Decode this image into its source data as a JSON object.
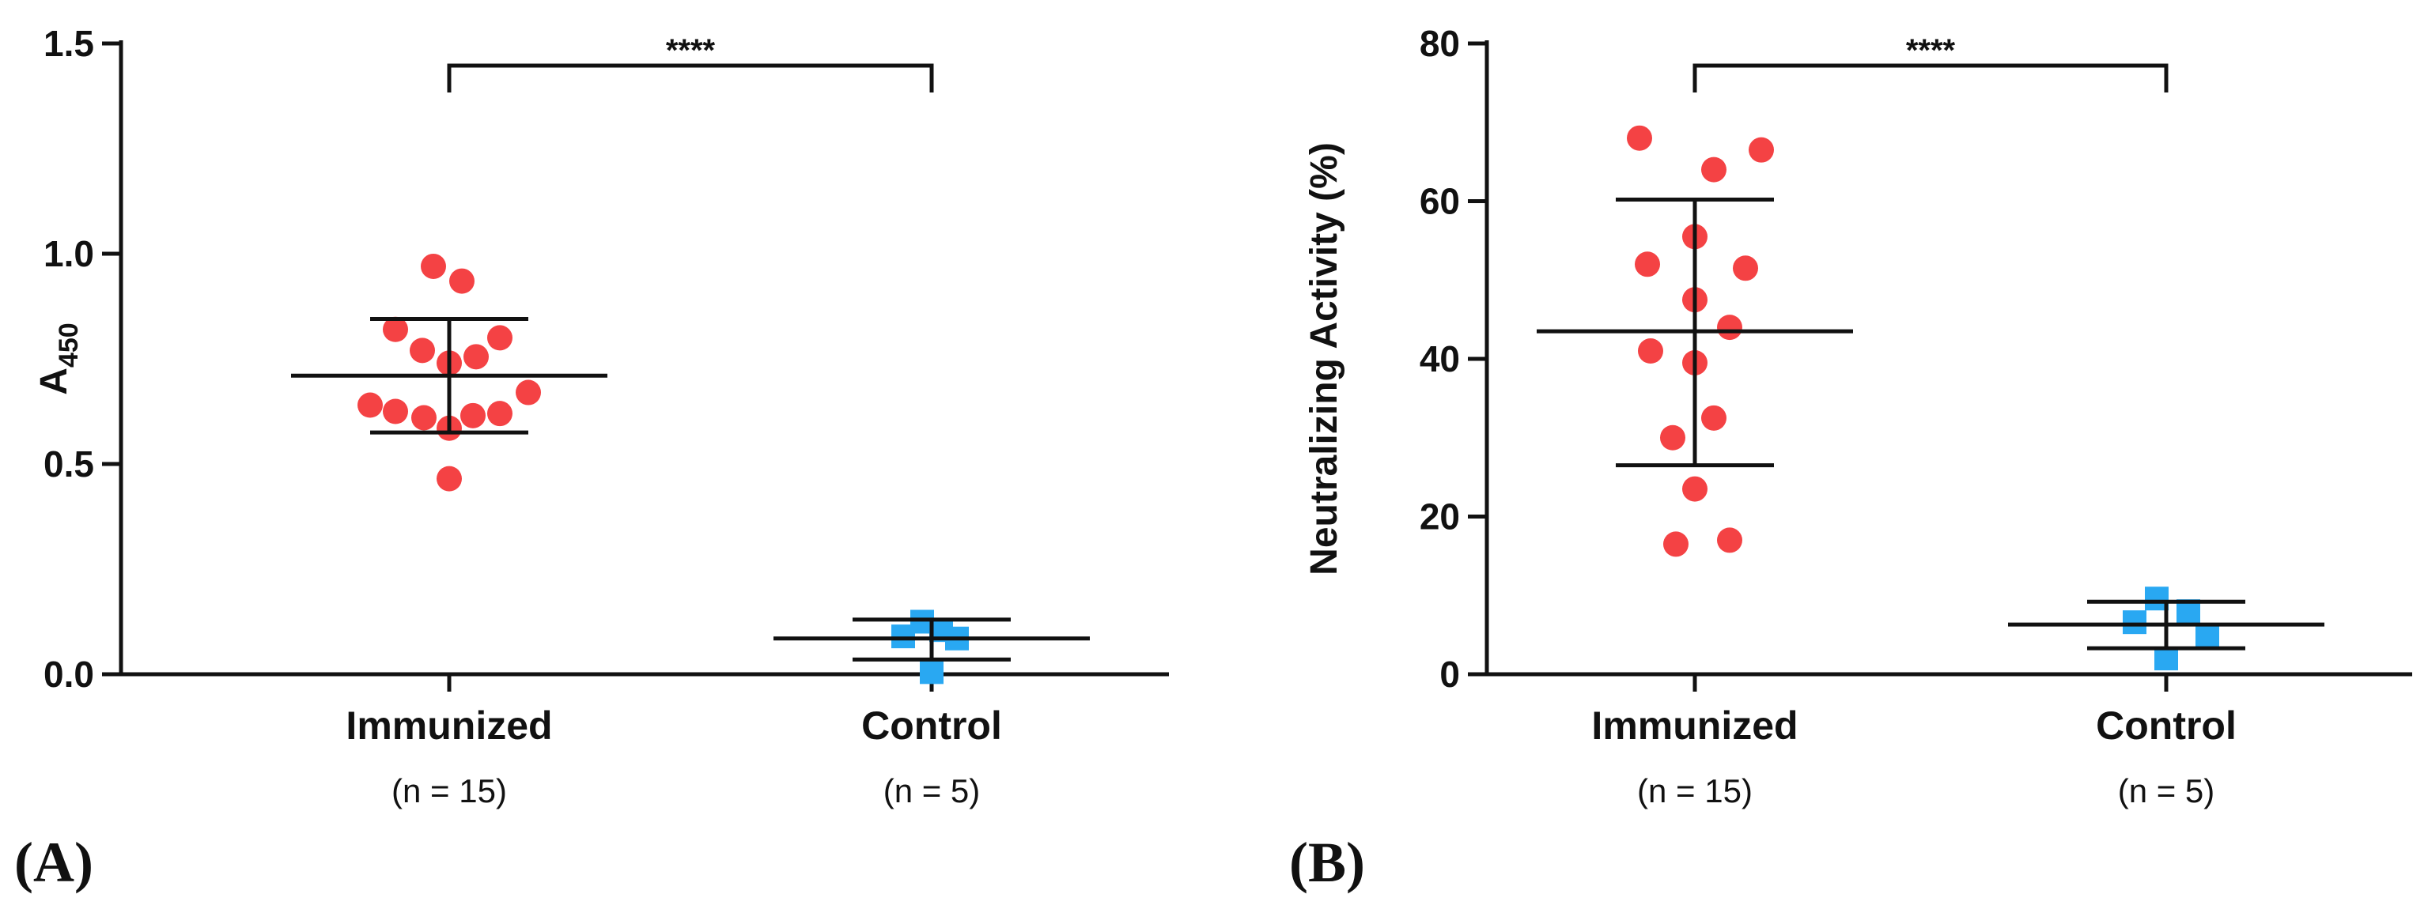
{
  "chart_data": [
    {
      "panel": "(A)",
      "type": "scatter",
      "ylabel_main": "A",
      "ylabel_sub": "450",
      "ylim": [
        0,
        1.5
      ],
      "yticks": [
        0.0,
        0.5,
        1.0,
        1.5
      ],
      "ytick_labels": [
        "0.0",
        "0.5",
        "1.0",
        "1.5"
      ],
      "groups": [
        {
          "name": "Immunized",
          "n_label": "(n = 15)",
          "marker": "circle",
          "color": "#f44244",
          "mean": 0.71,
          "sd_upper": 0.845,
          "sd_lower": 0.575,
          "points": [
            {
              "y": 0.97,
              "jitter": -0.1
            },
            {
              "y": 0.935,
              "jitter": 0.08
            },
            {
              "y": 0.82,
              "jitter": -0.34
            },
            {
              "y": 0.8,
              "jitter": 0.32
            },
            {
              "y": 0.77,
              "jitter": -0.17
            },
            {
              "y": 0.755,
              "jitter": 0.17
            },
            {
              "y": 0.74,
              "jitter": 0.0
            },
            {
              "y": 0.67,
              "jitter": 0.5
            },
            {
              "y": 0.64,
              "jitter": -0.5
            },
            {
              "y": 0.625,
              "jitter": -0.34
            },
            {
              "y": 0.62,
              "jitter": 0.32
            },
            {
              "y": 0.615,
              "jitter": 0.15
            },
            {
              "y": 0.61,
              "jitter": -0.16
            },
            {
              "y": 0.585,
              "jitter": 0.0
            },
            {
              "y": 0.465,
              "jitter": 0.0
            }
          ]
        },
        {
          "name": "Control",
          "n_label": "(n = 5)",
          "marker": "square",
          "color": "#29a8f2",
          "mean": 0.085,
          "sd_upper": 0.13,
          "sd_lower": 0.035,
          "points": [
            {
              "y": 0.125,
              "jitter": -0.06
            },
            {
              "y": 0.105,
              "jitter": 0.06
            },
            {
              "y": 0.09,
              "jitter": -0.18
            },
            {
              "y": 0.085,
              "jitter": 0.16
            },
            {
              "y": 0.005,
              "jitter": 0.0
            }
          ]
        }
      ],
      "significance": "****"
    },
    {
      "panel": "(B)",
      "type": "scatter",
      "ylabel_main": "Neutralizing Activity (%)",
      "ylabel_sub": "",
      "ylim": [
        0,
        80
      ],
      "yticks": [
        0,
        20,
        40,
        60,
        80
      ],
      "ytick_labels": [
        "0",
        "20",
        "40",
        "60",
        "80"
      ],
      "groups": [
        {
          "name": "Immunized",
          "n_label": "(n = 15)",
          "marker": "circle",
          "color": "#f44244",
          "mean": 43.5,
          "sd_upper": 60.2,
          "sd_lower": 26.5,
          "points": [
            {
              "y": 68.0,
              "jitter": -0.35
            },
            {
              "y": 66.5,
              "jitter": 0.42
            },
            {
              "y": 64.0,
              "jitter": 0.12
            },
            {
              "y": 55.5,
              "jitter": 0.0
            },
            {
              "y": 52.0,
              "jitter": -0.3
            },
            {
              "y": 51.5,
              "jitter": 0.32
            },
            {
              "y": 47.5,
              "jitter": 0.0
            },
            {
              "y": 44.0,
              "jitter": 0.22
            },
            {
              "y": 41.0,
              "jitter": -0.28
            },
            {
              "y": 39.5,
              "jitter": 0.0
            },
            {
              "y": 32.5,
              "jitter": 0.12
            },
            {
              "y": 30.0,
              "jitter": -0.14
            },
            {
              "y": 23.5,
              "jitter": 0.0
            },
            {
              "y": 17.0,
              "jitter": 0.22
            },
            {
              "y": 16.5,
              "jitter": -0.12
            }
          ]
        },
        {
          "name": "Control",
          "n_label": "(n = 5)",
          "marker": "square",
          "color": "#29a8f2",
          "mean": 6.3,
          "sd_upper": 9.2,
          "sd_lower": 3.3,
          "points": [
            {
              "y": 9.6,
              "jitter": -0.06
            },
            {
              "y": 8.0,
              "jitter": 0.14
            },
            {
              "y": 6.6,
              "jitter": -0.2
            },
            {
              "y": 5.0,
              "jitter": 0.26
            },
            {
              "y": 2.0,
              "jitter": 0.0
            }
          ]
        }
      ],
      "significance": "****"
    }
  ]
}
